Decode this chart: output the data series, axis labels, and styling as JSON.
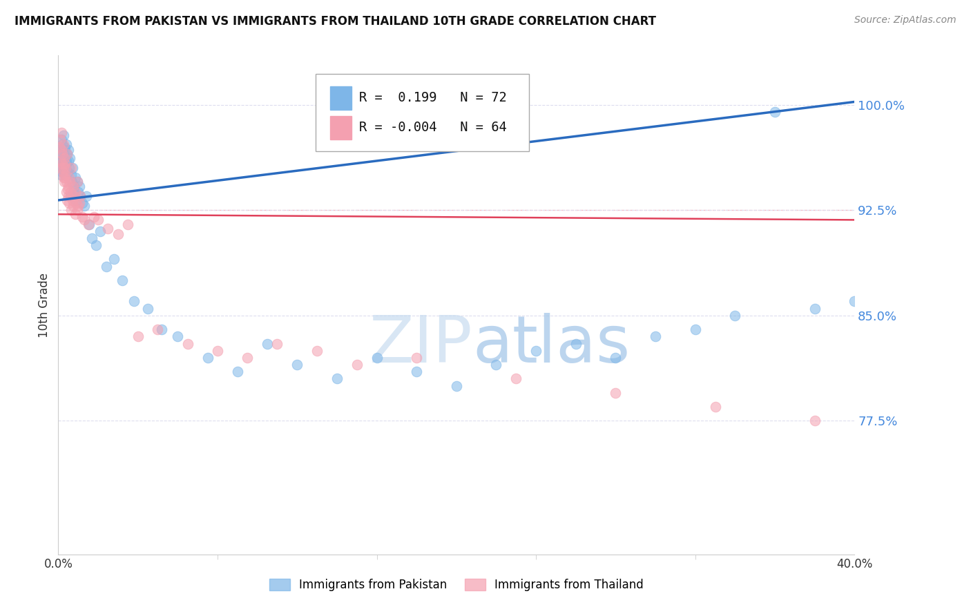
{
  "title": "IMMIGRANTS FROM PAKISTAN VS IMMIGRANTS FROM THAILAND 10TH GRADE CORRELATION CHART",
  "source": "Source: ZipAtlas.com",
  "ylabel": "10th Grade",
  "xlim": [
    0.0,
    40.0
  ],
  "ylim": [
    68.0,
    103.5
  ],
  "yticks": [
    77.5,
    85.0,
    92.5,
    100.0
  ],
  "ytick_labels": [
    "77.5%",
    "85.0%",
    "92.5%",
    "100.0%"
  ],
  "R_pakistan": 0.199,
  "N_pakistan": 72,
  "R_thailand": -0.004,
  "N_thailand": 64,
  "blue_color": "#7EB6E8",
  "pink_color": "#F4A0B0",
  "trend_blue": "#2A6BBF",
  "trend_pink": "#E0405A",
  "legend_label_blue": "Immigrants from Pakistan",
  "legend_label_pink": "Immigrants from Thailand",
  "pakistan_x": [
    0.05,
    0.08,
    0.1,
    0.12,
    0.13,
    0.15,
    0.15,
    0.18,
    0.2,
    0.2,
    0.22,
    0.25,
    0.25,
    0.28,
    0.3,
    0.3,
    0.32,
    0.35,
    0.38,
    0.4,
    0.4,
    0.42,
    0.45,
    0.48,
    0.5,
    0.5,
    0.55,
    0.58,
    0.6,
    0.65,
    0.68,
    0.7,
    0.75,
    0.8,
    0.85,
    0.9,
    0.95,
    1.0,
    1.05,
    1.1,
    1.2,
    1.3,
    1.4,
    1.55,
    1.7,
    1.9,
    2.1,
    2.4,
    2.8,
    3.2,
    3.8,
    4.5,
    5.2,
    6.0,
    7.5,
    9.0,
    10.5,
    12.0,
    14.0,
    16.0,
    18.0,
    20.0,
    22.0,
    24.0,
    26.0,
    28.0,
    30.0,
    32.0,
    34.0,
    36.0,
    38.0,
    40.0
  ],
  "pakistan_y": [
    95.5,
    96.0,
    97.0,
    96.5,
    95.0,
    97.5,
    96.8,
    95.2,
    96.0,
    97.2,
    95.8,
    96.5,
    97.8,
    95.5,
    96.2,
    97.0,
    95.0,
    96.8,
    95.5,
    96.0,
    97.2,
    95.8,
    96.5,
    95.2,
    96.0,
    96.8,
    95.5,
    96.2,
    93.5,
    95.0,
    94.5,
    95.5,
    93.8,
    94.2,
    94.8,
    93.2,
    94.5,
    93.8,
    94.2,
    93.5,
    93.0,
    92.8,
    93.5,
    91.5,
    90.5,
    90.0,
    91.0,
    88.5,
    89.0,
    87.5,
    86.0,
    85.5,
    84.0,
    83.5,
    82.0,
    81.0,
    83.0,
    81.5,
    80.5,
    82.0,
    81.0,
    80.0,
    81.5,
    82.5,
    83.0,
    82.0,
    83.5,
    84.0,
    85.0,
    99.5,
    85.5,
    86.0
  ],
  "thailand_x": [
    0.05,
    0.08,
    0.1,
    0.12,
    0.15,
    0.15,
    0.18,
    0.2,
    0.22,
    0.25,
    0.28,
    0.3,
    0.3,
    0.32,
    0.35,
    0.38,
    0.4,
    0.42,
    0.45,
    0.48,
    0.5,
    0.52,
    0.55,
    0.58,
    0.6,
    0.65,
    0.7,
    0.75,
    0.8,
    0.85,
    0.9,
    0.95,
    1.0,
    1.1,
    1.2,
    1.3,
    1.5,
    1.8,
    2.0,
    2.5,
    3.0,
    3.5,
    4.0,
    5.0,
    6.5,
    8.0,
    9.5,
    11.0,
    13.0,
    15.0,
    18.0,
    23.0,
    28.0,
    33.0,
    38.0,
    0.25,
    0.35,
    0.45,
    0.55,
    0.65,
    0.75,
    0.85,
    0.95,
    1.05
  ],
  "thailand_y": [
    97.0,
    96.0,
    97.5,
    95.5,
    96.8,
    98.0,
    95.8,
    96.5,
    95.2,
    94.8,
    95.5,
    94.5,
    96.2,
    95.0,
    94.8,
    95.5,
    93.8,
    94.5,
    93.2,
    94.0,
    93.5,
    94.2,
    93.0,
    94.5,
    93.8,
    92.5,
    93.2,
    92.8,
    93.5,
    92.2,
    93.0,
    92.5,
    92.8,
    93.5,
    92.0,
    91.8,
    91.5,
    92.0,
    91.8,
    91.2,
    90.8,
    91.5,
    83.5,
    84.0,
    83.0,
    82.5,
    82.0,
    83.0,
    82.5,
    81.5,
    82.0,
    80.5,
    79.5,
    78.5,
    77.5,
    97.2,
    95.8,
    96.5,
    94.8,
    95.5,
    94.2,
    93.8,
    94.5,
    93.0
  ],
  "trend_blue_x0": 0.0,
  "trend_blue_y0": 93.2,
  "trend_blue_x1": 40.0,
  "trend_blue_y1": 100.2,
  "trend_pink_x0": 0.0,
  "trend_pink_y0": 92.2,
  "trend_pink_x1": 40.0,
  "trend_pink_y1": 91.8
}
